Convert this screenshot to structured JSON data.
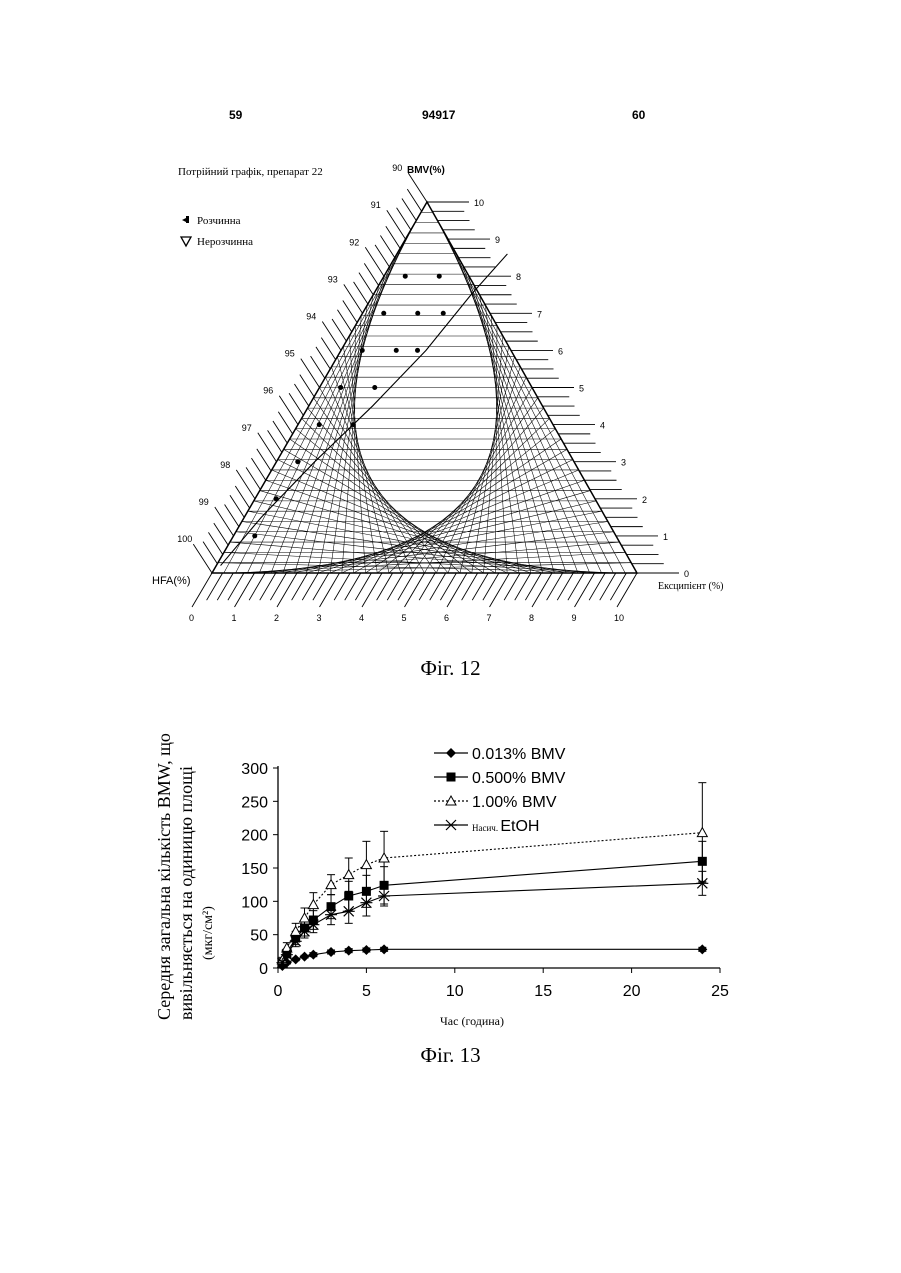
{
  "header": {
    "left_page": "59",
    "center_number": "94917",
    "right_page": "60"
  },
  "fig12": {
    "title": "Потрійний графік, препарат 22",
    "legend": [
      {
        "marker": "filled-circle",
        "label": "Розчинна"
      },
      {
        "marker": "open-triangle",
        "label": "Нерозчинна"
      }
    ],
    "left_axis_label": "HFA(%)",
    "top_axis_label": "BMV(%)",
    "right_axis_label": "Ексципієнт (%)",
    "left_ticks": [
      "90",
      "91",
      "92",
      "93",
      "94",
      "95",
      "96",
      "97",
      "98",
      "99",
      "100"
    ],
    "right_ticks": [
      "10",
      "9",
      "8",
      "7",
      "6",
      "5",
      "4",
      "3",
      "2",
      "1",
      "0"
    ],
    "bottom_ticks": [
      "0",
      "1",
      "2",
      "3",
      "4",
      "5",
      "6",
      "7",
      "8",
      "9",
      "10"
    ],
    "caption": "Фіг. 12"
  },
  "fig13": {
    "caption": "Фіг. 13",
    "chart_data": {
      "type": "line",
      "xlabel": "Час (година)",
      "ylabel_lines": [
        "Середня загальна кількість BMW, що",
        "вивільняється на одиницю площі",
        "(мкг/см²)"
      ],
      "xlim": [
        0,
        25
      ],
      "ylim": [
        0,
        300
      ],
      "x_ticks": [
        0,
        5,
        10,
        15,
        20,
        25
      ],
      "y_ticks": [
        0,
        50,
        100,
        150,
        200,
        250,
        300
      ],
      "legend_position": "top-right",
      "series": [
        {
          "name": "0.013% BMV",
          "marker": "diamond",
          "x": [
            0.25,
            0.5,
            1,
            1.5,
            2,
            3,
            4,
            5,
            6,
            24
          ],
          "y": [
            3,
            8,
            13,
            17,
            20,
            24,
            26,
            27,
            28,
            28
          ],
          "err": [
            1,
            2,
            2,
            2,
            3,
            3,
            3,
            3,
            3,
            3
          ]
        },
        {
          "name": "0.500% BMV",
          "marker": "square",
          "x": [
            0.25,
            0.5,
            1,
            1.5,
            2,
            3,
            4,
            5,
            6,
            24
          ],
          "y": [
            8,
            22,
            45,
            60,
            72,
            92,
            108,
            115,
            124,
            160
          ],
          "err": [
            3,
            6,
            10,
            12,
            14,
            18,
            22,
            24,
            28,
            30
          ]
        },
        {
          "name": "1.00% BMV",
          "marker": "open-triangle",
          "x": [
            0.25,
            0.5,
            1,
            1.5,
            2,
            3,
            4,
            5,
            6,
            24
          ],
          "y": [
            12,
            30,
            55,
            75,
            95,
            125,
            140,
            155,
            165,
            203
          ],
          "err": [
            4,
            8,
            12,
            15,
            18,
            15,
            25,
            35,
            40,
            75
          ]
        },
        {
          "name": "Насич. EtOH",
          "marker": "star",
          "x": [
            0.25,
            0.5,
            1,
            1.5,
            2,
            3,
            4,
            5,
            6,
            24
          ],
          "y": [
            8,
            20,
            40,
            55,
            65,
            80,
            85,
            98,
            108,
            127
          ],
          "err": [
            3,
            5,
            8,
            10,
            12,
            15,
            18,
            20,
            15,
            18
          ]
        }
      ]
    }
  }
}
